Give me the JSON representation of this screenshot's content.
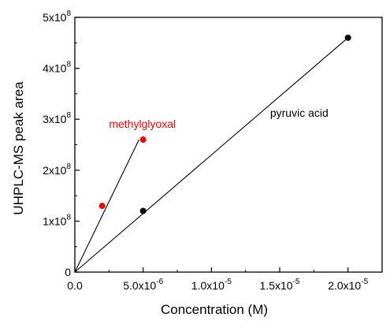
{
  "chart_data": {
    "type": "scatter",
    "xlabel": "Concentration (M)",
    "ylabel": "UHPLC-MS peak area",
    "xlim": [
      0,
      2.25e-05
    ],
    "ylim": [
      0,
      500000000.0
    ],
    "x_ticks": [
      {
        "value": 0,
        "label": "0.0"
      },
      {
        "value": 5e-06,
        "mant": "5.0x10",
        "exp": "-6"
      },
      {
        "value": 1e-05,
        "mant": "1.0x10",
        "exp": "-5"
      },
      {
        "value": 1.5e-05,
        "mant": "1.5x10",
        "exp": "-5"
      },
      {
        "value": 2e-05,
        "mant": "2.0x10",
        "exp": "-5"
      }
    ],
    "y_ticks": [
      {
        "value": 0,
        "label": "0"
      },
      {
        "value": 100000000.0,
        "mant": "1x10",
        "exp": "8"
      },
      {
        "value": 200000000.0,
        "mant": "2x10",
        "exp": "8"
      },
      {
        "value": 300000000.0,
        "mant": "3x10",
        "exp": "8"
      },
      {
        "value": 400000000.0,
        "mant": "4x10",
        "exp": "8"
      },
      {
        "value": 500000000.0,
        "mant": "5x10",
        "exp": "8"
      }
    ],
    "series": [
      {
        "name": "methylglyoxal",
        "color": "#ff0000",
        "points": [
          {
            "x": 2e-06,
            "y": 130000000.0
          },
          {
            "x": 5e-06,
            "y": 260000000.0
          }
        ],
        "fit_line": [
          {
            "x": 0,
            "y": 0
          },
          {
            "x": 4.7e-06,
            "y": 260000000.0
          }
        ]
      },
      {
        "name": "pyruvic acid",
        "color": "#000000",
        "points": [
          {
            "x": 5e-06,
            "y": 120000000.0
          },
          {
            "x": 2e-05,
            "y": 460000000.0
          }
        ],
        "fit_line": [
          {
            "x": 0,
            "y": 0
          },
          {
            "x": 2e-05,
            "y": 460000000.0
          }
        ]
      }
    ],
    "annotations": [
      {
        "text": "methylglyoxal",
        "color": "#ff0000",
        "x": 2.5e-06,
        "y": 283000000.0
      },
      {
        "text": "pyruvic acid",
        "color": "#000000",
        "x": 1.43e-05,
        "y": 305000000.0
      }
    ],
    "grid": false,
    "legend": "none"
  }
}
